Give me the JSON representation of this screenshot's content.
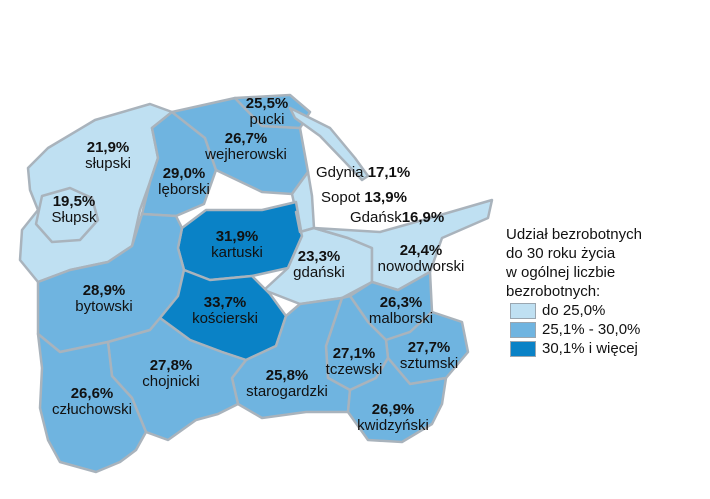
{
  "legend": {
    "title_lines": [
      "Udział bezrobotnych",
      "do 30 roku życia",
      "w ogólnej liczbie",
      "bezrobotnych:"
    ],
    "items": [
      {
        "label": "do 25,0%",
        "color": "#bfe0f2"
      },
      {
        "label": "25,1% - 30,0%",
        "color": "#6fb4e0"
      },
      {
        "label": "30,1% i więcej",
        "color": "#0a82c6"
      }
    ]
  },
  "regions": [
    {
      "name": "pucki",
      "value": "25,5%"
    },
    {
      "name": "wejherowski",
      "value": "26,7%"
    },
    {
      "name": "słupski",
      "value": "21,9%"
    },
    {
      "name": "lęborski",
      "value": "29,0%"
    },
    {
      "name": "Słupsk",
      "value": "19,5%"
    },
    {
      "name": "kartuski",
      "value": "31,9%"
    },
    {
      "name": "gdański",
      "value": "23,3%"
    },
    {
      "name": "nowodworski",
      "value": "24,4%"
    },
    {
      "name": "bytowski",
      "value": "28,9%"
    },
    {
      "name": "kościerski",
      "value": "33,7%"
    },
    {
      "name": "malborski",
      "value": "26,3%"
    },
    {
      "name": "tczewski",
      "value": "27,1%"
    },
    {
      "name": "sztumski",
      "value": "27,7%"
    },
    {
      "name": "chojnicki",
      "value": "27,8%"
    },
    {
      "name": "starogardzki",
      "value": "25,8%"
    },
    {
      "name": "człuchowski",
      "value": "26,6%"
    },
    {
      "name": "kwidzyński",
      "value": "26,9%"
    }
  ],
  "cities": [
    {
      "name": "Gdynia",
      "value": "17,1%"
    },
    {
      "name": "Sopot",
      "value": "13,9%"
    },
    {
      "name": "Gdańsk",
      "value": "16,9%"
    }
  ]
}
